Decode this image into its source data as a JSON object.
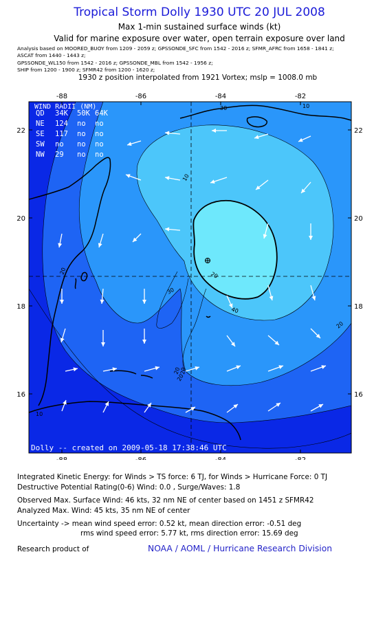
{
  "header": {
    "title": "Tropical Storm Dolly 1930 UTC 20 JUL 2008",
    "subtitle": "Max 1-min sustained surface winds (kt)",
    "valid": "Valid for marine exposure over water, open terrain exposure over land",
    "analysis_lines": [
      "Analysis based on  MOORED_BUOY from 1209 - 2059 z;  GPSSONDE_SFC from 1542 - 2016 z;  SFMR_AFRC from 1658 - 1841 z;",
      "ASCAT from 1440 - 1443 z;",
      "GPSSONDE_WL150 from 1542 - 2016 z;  GPSSONDE_MBL from 1542 - 1956 z;",
      "SHIP from 1200 - 1900 z;  SFMR42 from 1200 - 1620 z;"
    ],
    "position_line": "1930 z position interpolated from 1921 Vortex; mslp = 1008.0 mb"
  },
  "map": {
    "longitude_ticks": [
      "-88",
      "-86",
      "-84",
      "-82"
    ],
    "latitude_ticks": [
      "22",
      "20",
      "18",
      "16"
    ],
    "contour_labels": [
      "10",
      "20",
      "30",
      "40",
      "20",
      "20",
      "20",
      "30",
      "20",
      "20",
      "10",
      "10"
    ],
    "wind_radii_box": {
      "title": "WIND RADII (NM)",
      "header": [
        "QD",
        "34K",
        "50K",
        "64K"
      ],
      "rows": [
        [
          "NE",
          "124",
          "no",
          "no"
        ],
        [
          "SE",
          "117",
          "no",
          "no"
        ],
        [
          "SW",
          "no",
          "no",
          "no"
        ],
        [
          "NW",
          "29",
          "no",
          "no"
        ]
      ]
    },
    "credit": "Dolly -- created on 2009-05-18  17:38:46 UTC",
    "colors": {
      "band_lt10": "#0a28e6",
      "band_10_20": "#1e64f4",
      "band_20_30": "#2a96fa",
      "band_30_40": "#4cc6fa",
      "band_gt40": "#6ee8fc",
      "land": "#000000",
      "arrow": "#ffffff"
    }
  },
  "footer": {
    "ike_line": "Integrated Kinetic Energy:  for Winds > TS force: 6 TJ,  for Winds > Hurricane Force: 0 TJ",
    "dpr_line": "Destructive Potential Rating(0-6)   Wind: 0.0 , Surge/Waves: 1.8",
    "observed_line": "Observed Max. Surface Wind: 46 kts, 32 nm NE of center based on 1451 z SFMR42",
    "analyzed_line": "Analyzed Max. Wind: 45 kts, 35 nm NE of center",
    "uncertainty_line1": "Uncertainty -> mean wind speed error: 0.52 kt,   mean direction error:  -0.51 deg",
    "uncertainty_line2": "rms wind speed error: 5.77 kt,   rms direction error: 15.69 deg",
    "research_label": "Research product of",
    "research_org": "NOAA / AOML / Hurricane Research Division"
  }
}
